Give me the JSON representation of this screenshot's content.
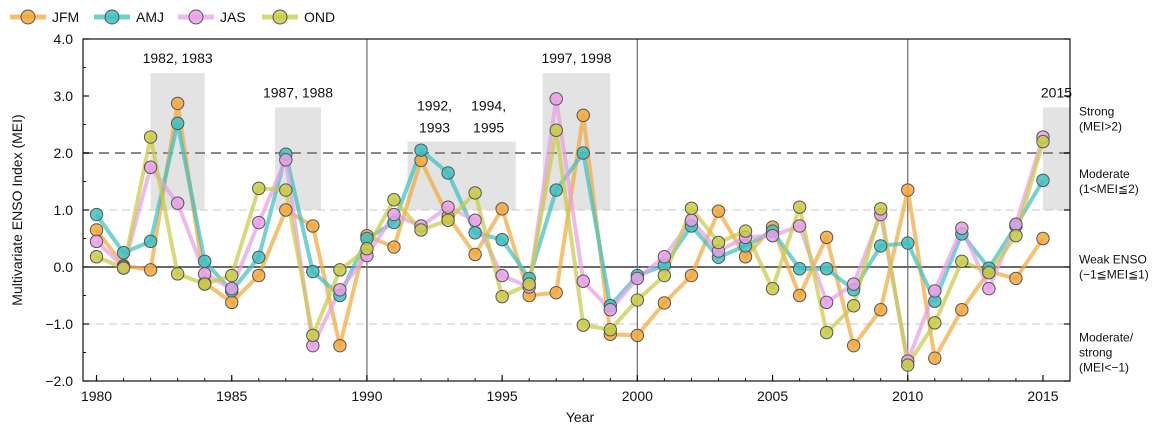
{
  "chart_data": {
    "type": "line",
    "xlabel": "Year",
    "ylabel": "Multivariate ENSO Index (MEI)",
    "xlim": [
      1979.5,
      2016
    ],
    "ylim": [
      -2.0,
      4.0
    ],
    "x_ticks": [
      1980,
      1985,
      1990,
      1995,
      2000,
      2005,
      2010,
      2015
    ],
    "y_ticks": [
      {
        "value": 4.0,
        "label": "4.0"
      },
      {
        "value": 3.0,
        "label": "3.0"
      },
      {
        "value": 2.0,
        "label": "2.0"
      },
      {
        "value": 1.0,
        "label": "1.0"
      },
      {
        "value": 0.0,
        "label": "0.0"
      },
      {
        "value": -1.0,
        "label": "−1.0"
      },
      {
        "value": -2.0,
        "label": "−2.0"
      }
    ],
    "legend_position": "top-left",
    "decade_lines": [
      1990,
      2000,
      2010
    ],
    "strong_threshold": 2.0,
    "moderate_threshold": 1.0,
    "negative_threshold": -1.0,
    "series": [
      {
        "name": "JFM",
        "color": "#f4a93b",
        "x": [
          1980,
          1981,
          1982,
          1983,
          1984,
          1985,
          1986,
          1987,
          1988,
          1989,
          1990,
          1991,
          1992,
          1993,
          1994,
          1995,
          1996,
          1997,
          1998,
          1999,
          2000,
          2001,
          2002,
          2003,
          2004,
          2005,
          2006,
          2007,
          2008,
          2009,
          2010,
          2011,
          2012,
          2013,
          2014,
          2015
        ],
        "values": [
          0.65,
          0.02,
          -0.05,
          2.87,
          -0.28,
          -0.62,
          -0.15,
          1.0,
          0.72,
          -1.38,
          0.55,
          0.35,
          1.87,
          0.88,
          0.22,
          1.02,
          -0.5,
          -0.45,
          2.66,
          -1.18,
          -1.2,
          -0.63,
          -0.15,
          0.98,
          0.18,
          0.7,
          -0.5,
          0.52,
          -1.38,
          -0.75,
          1.35,
          -1.6,
          -0.75,
          -0.08,
          -0.2,
          0.5
        ]
      },
      {
        "name": "AMJ",
        "color": "#3dc1c1",
        "x": [
          1980,
          1981,
          1982,
          1983,
          1984,
          1985,
          1986,
          1987,
          1988,
          1989,
          1990,
          1991,
          1992,
          1993,
          1994,
          1995,
          1996,
          1997,
          1998,
          1999,
          2000,
          2001,
          2002,
          2003,
          2004,
          2005,
          2006,
          2007,
          2008,
          2009,
          2010,
          2011,
          2012,
          2013,
          2014,
          2015
        ],
        "values": [
          0.92,
          0.25,
          0.45,
          2.52,
          0.1,
          -0.42,
          0.17,
          1.98,
          -0.08,
          -0.5,
          0.5,
          0.78,
          2.05,
          1.65,
          0.6,
          0.48,
          -0.2,
          1.35,
          2.0,
          -0.68,
          -0.15,
          0.03,
          0.72,
          0.17,
          0.37,
          0.63,
          -0.03,
          -0.03,
          -0.4,
          0.37,
          0.42,
          -0.6,
          0.58,
          -0.02,
          0.72,
          1.52
        ]
      },
      {
        "name": "JAS",
        "color": "#e8a0e8",
        "x": [
          1980,
          1981,
          1982,
          1983,
          1984,
          1985,
          1986,
          1987,
          1988,
          1989,
          1990,
          1991,
          1992,
          1993,
          1994,
          1995,
          1996,
          1997,
          1998,
          1999,
          2000,
          2001,
          2002,
          2003,
          2004,
          2005,
          2006,
          2007,
          2008,
          2009,
          2010,
          2011,
          2012,
          2013,
          2014,
          2015
        ],
        "values": [
          0.45,
          0.0,
          1.75,
          1.12,
          -0.12,
          -0.38,
          0.78,
          1.88,
          -1.38,
          -0.4,
          0.2,
          0.92,
          0.72,
          1.05,
          0.82,
          -0.15,
          -0.35,
          2.95,
          -0.25,
          -0.75,
          -0.2,
          0.18,
          0.82,
          0.28,
          0.52,
          0.55,
          0.72,
          -0.62,
          -0.3,
          0.92,
          -1.65,
          -0.42,
          0.68,
          -0.38,
          0.75,
          2.28
        ]
      },
      {
        "name": "OND",
        "color": "#c9cc45",
        "x": [
          1980,
          1981,
          1982,
          1983,
          1984,
          1985,
          1986,
          1987,
          1988,
          1989,
          1990,
          1991,
          1992,
          1993,
          1994,
          1995,
          1996,
          1997,
          1998,
          1999,
          2000,
          2001,
          2002,
          2003,
          2004,
          2005,
          2006,
          2007,
          2008,
          2009,
          2010,
          2011,
          2012,
          2013,
          2014,
          2015
        ],
        "values": [
          0.18,
          -0.02,
          2.28,
          -0.12,
          -0.3,
          -0.15,
          1.38,
          1.35,
          -1.2,
          -0.05,
          0.32,
          1.18,
          0.65,
          0.82,
          1.3,
          -0.52,
          -0.3,
          2.4,
          -1.02,
          -1.1,
          -0.58,
          -0.15,
          1.03,
          0.43,
          0.63,
          -0.38,
          1.05,
          -1.15,
          -0.68,
          1.02,
          -1.72,
          -0.98,
          0.1,
          -0.1,
          0.55,
          2.2
        ]
      }
    ],
    "event_boxes": [
      {
        "label": "1982, 1983",
        "x_start": 1982,
        "x_end": 1984,
        "y_top": 3.4
      },
      {
        "label": "1987, 1988",
        "x_start": 1986.6,
        "x_end": 1988.3,
        "y_top": 2.8
      },
      {
        "label": "1992, 1993",
        "x_start": 1991.5,
        "x_end": 1993.5,
        "y_top": 2.2
      },
      {
        "label": "1994, 1995",
        "x_start": 1993.5,
        "x_end": 1995.5,
        "y_top": 2.2
      },
      {
        "label": "1997, 1998",
        "x_start": 1996.5,
        "x_end": 1999,
        "y_top": 3.4
      },
      {
        "label": "2015",
        "x_start": 2015,
        "x_end": 2016,
        "y_top": 2.8
      }
    ],
    "right_annotations": [
      {
        "text": [
          "Strong",
          "(MEI>2)"
        ],
        "y": 2.6
      },
      {
        "text": [
          "Moderate",
          "(1<MEI≦2)"
        ],
        "y": 1.5
      },
      {
        "text": [
          "Weak ENSO",
          "(−1≦MEI≦1)"
        ],
        "y": 0.0
      },
      {
        "text": [
          "Moderate/",
          "strong",
          "(MEI<−1)"
        ],
        "y": -1.5
      }
    ]
  }
}
